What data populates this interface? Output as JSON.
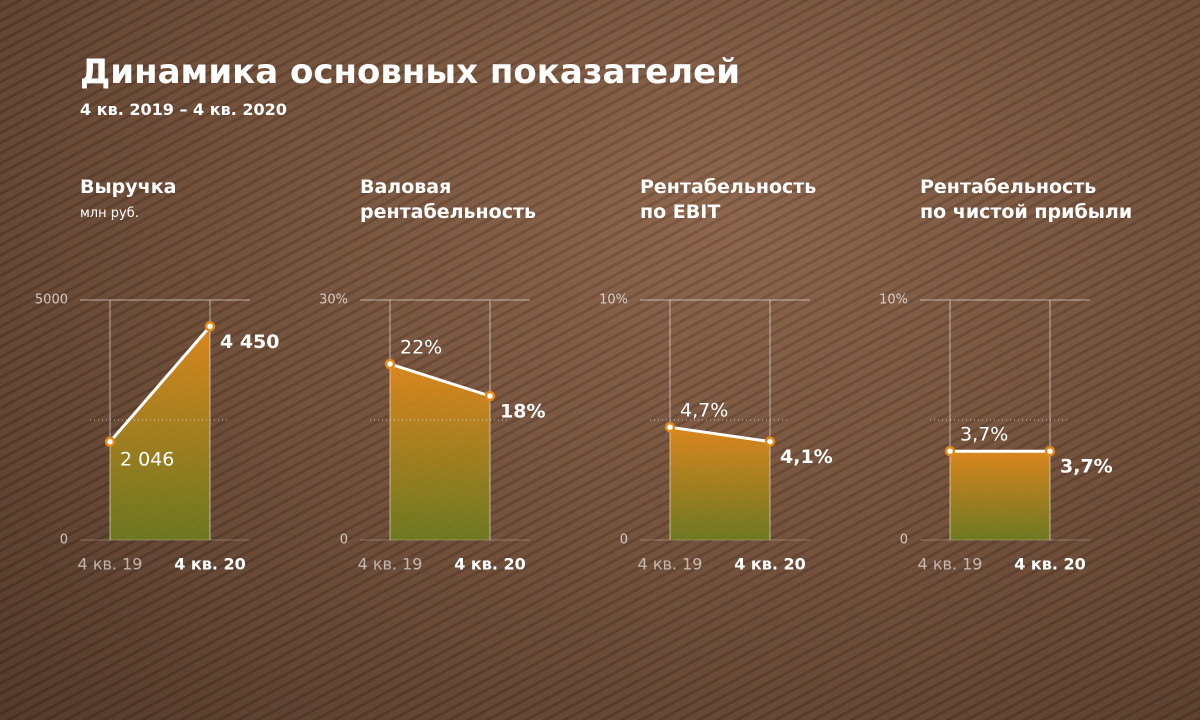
{
  "title": "Динамика основных показателей",
  "subtitle": "4 кв. 2019 – 4 кв. 2020",
  "chart_data": [
    {
      "type": "area",
      "title": "Выручка",
      "subtitle": "млн руб.",
      "color": "#e0891c",
      "categories": [
        "4 кв. 19",
        "4 кв. 20"
      ],
      "values": [
        2046,
        4450
      ],
      "value_labels": [
        "2 046",
        "4 450"
      ],
      "ylim": [
        0,
        5000
      ],
      "yticks": [
        0,
        5000
      ]
    },
    {
      "type": "area",
      "title": "Валовая\nрентабельность",
      "color": "#e0891c",
      "categories": [
        "4 кв. 19",
        "4 кв. 20"
      ],
      "values": [
        22,
        18
      ],
      "value_labels": [
        "22%",
        "18%"
      ],
      "ylim": [
        0,
        30
      ],
      "yticks": [
        0,
        {
          "value": 30,
          "label": "30%"
        }
      ]
    },
    {
      "type": "area",
      "title": "Рентабельность\nпо EBIT",
      "color": "#e0891c",
      "categories": [
        "4 кв. 19",
        "4 кв. 20"
      ],
      "values": [
        4.7,
        4.1
      ],
      "value_labels": [
        "4,7%",
        "4,1%"
      ],
      "ylim": [
        0,
        10
      ],
      "yticks": [
        0,
        {
          "value": 10,
          "label": "10%"
        }
      ]
    },
    {
      "type": "area",
      "title": "Рентабельность\nпо чистой прибыли",
      "color": "#e0891c",
      "categories": [
        "4 кв. 19",
        "4 кв. 20"
      ],
      "values": [
        3.7,
        3.7
      ],
      "value_labels": [
        "3,7%",
        "3,7%"
      ],
      "ylim": [
        0,
        10
      ],
      "yticks": [
        0,
        {
          "value": 10,
          "label": "10%"
        }
      ]
    }
  ]
}
